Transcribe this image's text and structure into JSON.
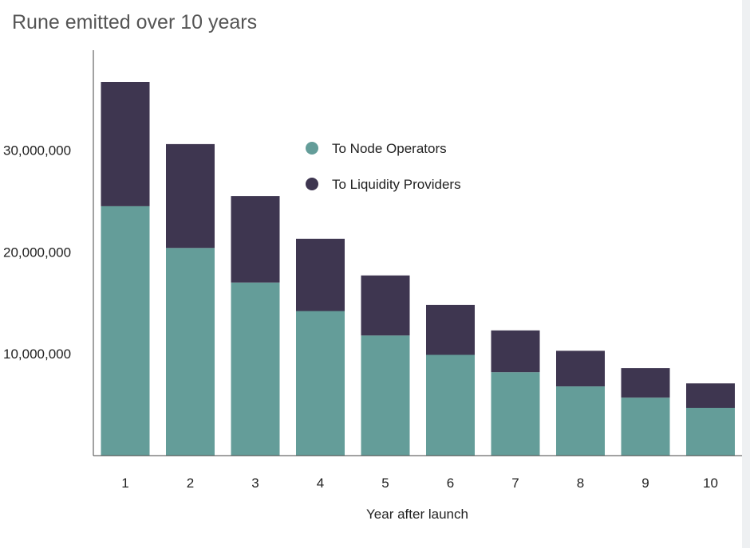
{
  "chart_data": {
    "type": "bar",
    "stacked": true,
    "title": "Rune emitted over 10 years",
    "xlabel": "Year after launch",
    "ylabel": "",
    "categories": [
      "1",
      "2",
      "3",
      "4",
      "5",
      "6",
      "7",
      "8",
      "9",
      "10"
    ],
    "series": [
      {
        "name": "To Node Operators",
        "color": "#649d99",
        "values": [
          24500000,
          20400000,
          17000000,
          14200000,
          11800000,
          9900000,
          8200000,
          6800000,
          5700000,
          4700000
        ]
      },
      {
        "name": "To Liquidity Providers",
        "color": "#3e3650",
        "values": [
          12200000,
          10200000,
          8500000,
          7100000,
          5900000,
          4900000,
          4100000,
          3500000,
          2900000,
          2400000
        ]
      }
    ],
    "ylim": [
      0,
      39800000
    ],
    "yticks": [
      10000000,
      20000000,
      30000000
    ],
    "ytick_labels": [
      "10,000,000",
      "20,000,000",
      "30,000,000"
    ],
    "grid": false,
    "legend": "inside, upper center"
  }
}
